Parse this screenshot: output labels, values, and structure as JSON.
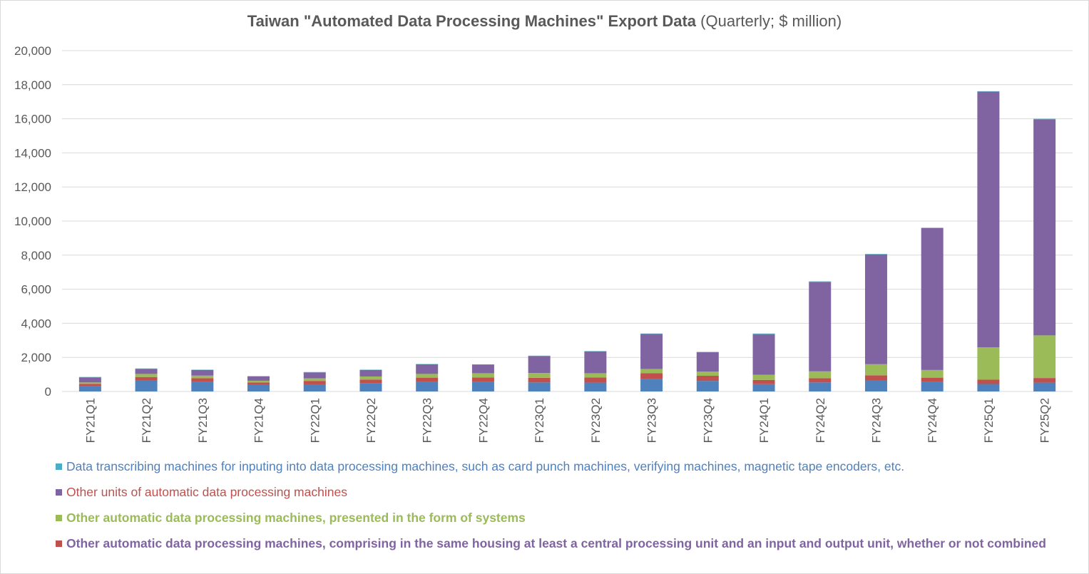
{
  "colors": {
    "transcribing": "#4bacc6",
    "other_units": "#8064a2",
    "systems": "#9bbb59",
    "cpu_housing": "#c0504d",
    "base": "#4f81bd",
    "grid": "#d9d9d9",
    "axis_text": "#595959"
  },
  "chart_data": {
    "type": "bar",
    "stacked": true,
    "title_main": "Taiwan \"Automated Data Processing Machines\" Export Data",
    "title_sub": "(Quarterly; $ million)",
    "ylim": [
      0,
      20000
    ],
    "yticks": [
      0,
      2000,
      4000,
      6000,
      8000,
      10000,
      12000,
      14000,
      16000,
      18000,
      20000
    ],
    "ytick_labels": [
      "0",
      "2,000",
      "4,000",
      "6,000",
      "8,000",
      "10,000",
      "12,000",
      "14,000",
      "16,000",
      "18,000",
      "20,000"
    ],
    "grid": true,
    "legend_position": "bottom",
    "categories": [
      "FY21Q1",
      "FY21Q2",
      "FY21Q3",
      "FY21Q4",
      "FY22Q1",
      "FY22Q2",
      "FY22Q3",
      "FY22Q4",
      "FY23Q1",
      "FY23Q2",
      "FY23Q3",
      "FY23Q4",
      "FY24Q1",
      "FY24Q2",
      "FY24Q3",
      "FY24Q4",
      "FY25Q1",
      "FY25Q2"
    ],
    "series": [
      {
        "color_key": "base",
        "values": [
          300,
          650,
          560,
          380,
          420,
          470,
          560,
          570,
          530,
          520,
          750,
          620,
          430,
          530,
          650,
          560,
          440,
          520
        ]
      },
      {
        "color_key": "cpu_housing",
        "values": [
          150,
          200,
          220,
          150,
          200,
          230,
          250,
          250,
          270,
          300,
          320,
          300,
          250,
          250,
          300,
          250,
          250,
          270
        ]
      },
      {
        "color_key": "systems",
        "values": [
          80,
          180,
          150,
          100,
          150,
          180,
          220,
          250,
          280,
          250,
          250,
          250,
          300,
          400,
          650,
          450,
          1900,
          2500
        ]
      },
      {
        "color_key": "other_units",
        "values": [
          300,
          300,
          330,
          250,
          350,
          380,
          560,
          500,
          1000,
          1280,
          2050,
          1130,
          2380,
          5250,
          6440,
          8330,
          15000,
          12680
        ]
      },
      {
        "color_key": "transcribing",
        "values": [
          20,
          20,
          20,
          20,
          20,
          20,
          20,
          20,
          20,
          20,
          30,
          20,
          40,
          30,
          30,
          20,
          30,
          30
        ]
      }
    ]
  },
  "legend": [
    {
      "label": "Data transcribing machines for inputing into data processing machines, such as card punch machines, verifying machines, magnetic tape encoders, etc.",
      "swatch_key": "transcribing",
      "text_color": "#4f81bd",
      "bold": false
    },
    {
      "label": "Other units of automatic data processing machines",
      "swatch_key": "other_units",
      "text_color": "#c0504d",
      "bold": false
    },
    {
      "label": "Other automatic data processing machines, presented in the form of systems",
      "swatch_key": "systems",
      "text_color": "#9bbb59",
      "bold": true
    },
    {
      "label": "Other automatic data processing machines, comprising in the same housing at least a central processing unit and an input and output unit, whether or not combined",
      "swatch_key": "cpu_housing",
      "text_color": "#8064a2",
      "bold": true
    }
  ]
}
